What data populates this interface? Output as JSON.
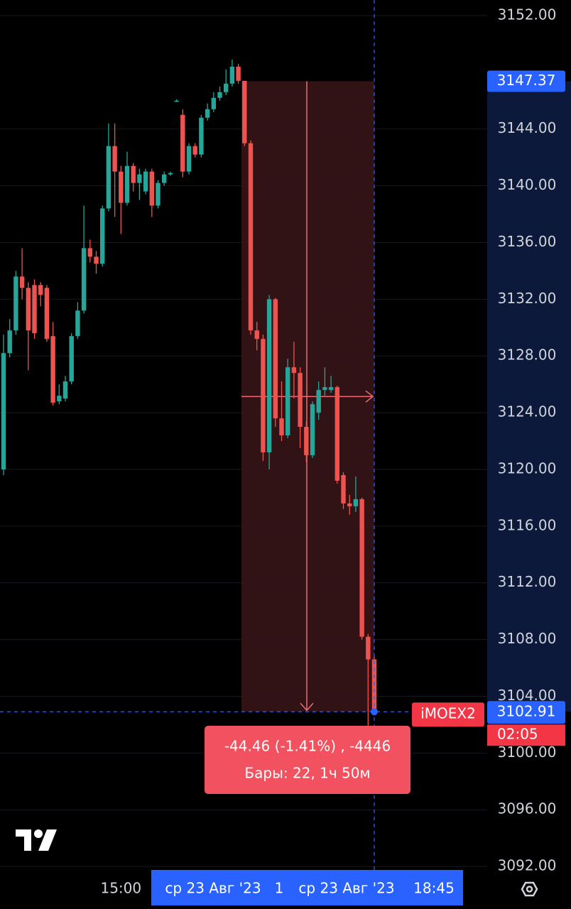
{
  "chart_data": {
    "type": "candlestick",
    "symbol": "iMOEX2",
    "countdown": "02:05",
    "last_price": 3102.91,
    "up_color": "#26a69a",
    "down_color": "#ef5350",
    "grid": true,
    "ylim": [
      3089.0,
      3153.1
    ],
    "yticks": [
      {
        "value": 3152,
        "label": "3152.00"
      },
      {
        "value": 3144,
        "label": "3144.00"
      },
      {
        "value": 3140,
        "label": "3140.00"
      },
      {
        "value": 3136,
        "label": "3136.00"
      },
      {
        "value": 3132,
        "label": "3132.00"
      },
      {
        "value": 3128,
        "label": "3128.00"
      },
      {
        "value": 3124,
        "label": "3124.00"
      },
      {
        "value": 3120,
        "label": "3120.00"
      },
      {
        "value": 3116,
        "label": "3116.00"
      },
      {
        "value": 3112,
        "label": "3112.00"
      },
      {
        "value": 3108,
        "label": "3108.00"
      },
      {
        "value": 3104,
        "label": "3104.00"
      },
      {
        "value": 3100,
        "label": "3100.00"
      },
      {
        "value": 3096,
        "label": "3096.00"
      },
      {
        "value": 3092,
        "label": "3092.00"
      }
    ],
    "categories": [
      null,
      null,
      null,
      null,
      null,
      null,
      null,
      null,
      null,
      null,
      null,
      null,
      null,
      null,
      null,
      null,
      null,
      null,
      null,
      "15:00",
      null,
      null,
      null,
      null,
      null,
      null,
      null,
      null,
      null,
      null,
      null,
      null,
      null,
      null,
      null,
      null,
      null,
      null,
      null,
      null,
      null,
      null,
      null,
      null,
      null,
      null,
      null,
      null,
      null,
      null,
      null,
      null,
      null,
      null,
      null,
      null,
      null,
      null,
      null,
      null,
      null
    ],
    "open": [
      3120.0,
      3128.2,
      3129.8,
      3133.6,
      3132.8,
      3133.0,
      3133.0,
      3132.8,
      3129.4,
      3124.8,
      3125.0,
      3126.2,
      3129.4,
      3131.2,
      3135.6,
      3135.0,
      3134.5,
      3138.4,
      3142.8,
      3141.0,
      3138.8,
      3141.4,
      3140.2,
      3139.6,
      3141.0,
      3138.6,
      3140.2,
      3140.8,
      3146.0,
      3145.0,
      3141.0,
      3142.8,
      3142.2,
      3144.8,
      3145.4,
      3146.2,
      3146.6,
      3147.2,
      3148.4,
      3147.4,
      3143.0,
      3129.8,
      3129.2,
      3121.2,
      3132.0,
      3123.6,
      3122.4,
      3127.2,
      3126.8,
      3123.0,
      3121.0,
      3124.0,
      3125.6,
      3125.6,
      3125.8,
      3119.6,
      3117.6,
      3117.4,
      3117.9,
      3108.2,
      3106.6
    ],
    "high": [
      3129.5,
      3130.6,
      3134.0,
      3135.6,
      3133.2,
      3133.4,
      3133.2,
      3133.0,
      3130.4,
      3126.0,
      3126.6,
      3129.6,
      3131.8,
      3138.6,
      3136.2,
      3135.4,
      3138.6,
      3144.4,
      3144.4,
      3141.4,
      3142.4,
      3141.6,
      3141.2,
      3141.2,
      3141.2,
      3140.4,
      3141.0,
      3141.0,
      3146.1,
      3145.4,
      3143.0,
      3143.0,
      3145.0,
      3145.8,
      3146.6,
      3147.0,
      3148.2,
      3148.9,
      3148.6,
      3147.4,
      3143.2,
      3130.4,
      3129.5,
      3132.3,
      3132.1,
      3126.2,
      3127.8,
      3129.0,
      3127.2,
      3123.4,
      3124.8,
      3126.2,
      3127.2,
      3126.6,
      3125.9,
      3119.8,
      3118.2,
      3119.5,
      3118.0,
      3108.4,
      3106.8
    ],
    "low": [
      3119.6,
      3127.9,
      3129.5,
      3132.0,
      3127.0,
      3129.2,
      3131.5,
      3129.0,
      3124.5,
      3124.6,
      3124.8,
      3126.0,
      3129.2,
      3131.0,
      3134.6,
      3133.8,
      3134.3,
      3138.2,
      3137.8,
      3136.6,
      3138.6,
      3139.6,
      3139.0,
      3139.4,
      3137.8,
      3138.4,
      3140.0,
      3140.7,
      3145.9,
      3140.6,
      3140.8,
      3142.0,
      3142.0,
      3144.6,
      3145.2,
      3146.0,
      3146.4,
      3147.0,
      3147.2,
      3142.8,
      3129.5,
      3128.4,
      3120.6,
      3120.0,
      3123.0,
      3122.0,
      3122.2,
      3125.0,
      3121.5,
      3120.5,
      3120.8,
      3123.5,
      3125.2,
      3125.4,
      3119.0,
      3117.2,
      3116.8,
      3117.0,
      3108.0,
      3101.0,
      3102.8
    ],
    "close": [
      3128.2,
      3129.8,
      3133.6,
      3132.8,
      3129.8,
      3129.6,
      3132.3,
      3129.2,
      3124.7,
      3125.2,
      3126.2,
      3129.4,
      3131.2,
      3135.6,
      3135.0,
      3134.5,
      3138.4,
      3142.8,
      3141.0,
      3138.8,
      3141.4,
      3140.2,
      3140.8,
      3141.0,
      3138.6,
      3140.2,
      3140.8,
      3140.9,
      3146.0,
      3141.0,
      3142.8,
      3142.2,
      3144.8,
      3145.4,
      3146.2,
      3146.6,
      3147.2,
      3148.4,
      3147.4,
      3143.0,
      3129.8,
      3129.2,
      3121.2,
      3132.0,
      3123.6,
      3122.4,
      3127.2,
      3126.8,
      3123.0,
      3121.0,
      3124.6,
      3125.6,
      3125.8,
      3125.8,
      3119.2,
      3117.6,
      3117.4,
      3117.9,
      3108.2,
      3106.6,
      3102.91
    ],
    "measure": {
      "from": 3147.37,
      "to": 3102.91,
      "label": "-44.46 (-1.41%) , -4446",
      "bars_label": "Бары: 22, 1ч 50м"
    },
    "crosshair": {
      "range_start": "ср 23 Авг '23",
      "bars": "1",
      "range_end": "ср 23 Авг '23",
      "time": "18:45"
    }
  }
}
